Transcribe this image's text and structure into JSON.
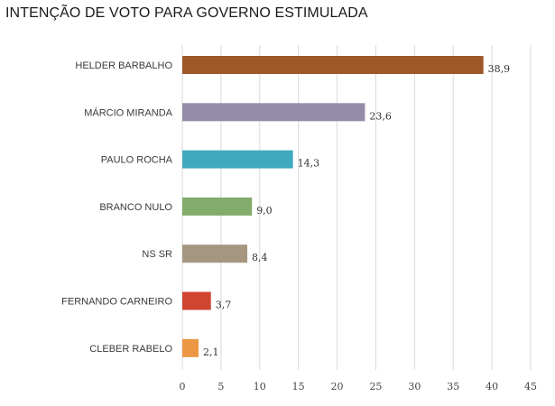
{
  "title": "INTENÇÃO DE VOTO PARA GOVERNO ESTIMULADA",
  "chart_data": {
    "type": "bar",
    "orientation": "horizontal",
    "title": "INTENÇÃO DE VOTO PARA GOVERNO ESTIMULADA",
    "xlabel": "",
    "ylabel": "",
    "xlim": [
      0,
      45
    ],
    "x_ticks": [
      "0",
      "5",
      "10",
      "15",
      "20",
      "25",
      "30",
      "35",
      "40",
      "45"
    ],
    "grid": true,
    "legend": false,
    "categories": [
      "HELDER BARBALHO",
      "MÁRCIO MIRANDA",
      "PAULO ROCHA",
      "BRANCO NULO",
      "NS SR",
      "FERNANDO CARNEIRO",
      "CLEBER RABELO"
    ],
    "values": [
      38.9,
      23.6,
      14.3,
      9.0,
      8.4,
      3.7,
      2.1
    ],
    "value_labels": [
      "38,9",
      "23,6",
      "14,3",
      "9,0",
      "8,4",
      "3,7",
      "2,1"
    ],
    "colors": [
      "#9e5726",
      "#948ca8",
      "#41a9bf",
      "#82ab6c",
      "#a69680",
      "#d04530",
      "#ec9744"
    ]
  }
}
